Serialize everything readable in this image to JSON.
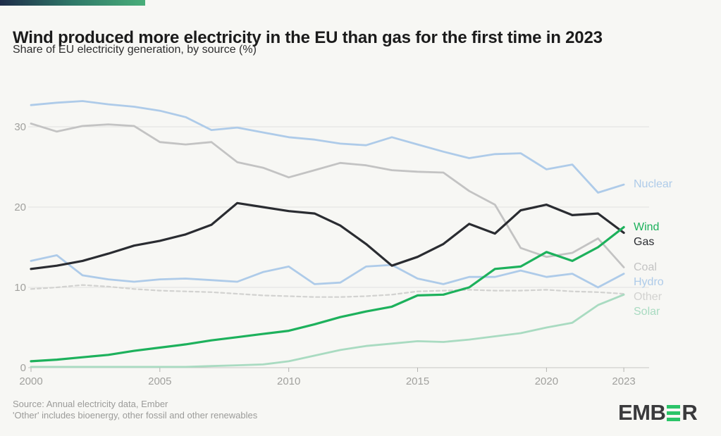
{
  "page": {
    "title": "Wind produced more electricity in the EU than gas for the first time in 2023",
    "subtitle": "Share of EU electricity generation, by source (%)",
    "source_line1": "Source: Annual electricity data, Ember",
    "source_line2": "'Other' includes bioenergy, other fossil and other renewables",
    "accent_gradient": [
      "#1e2c49",
      "#2f7868",
      "#49ae7a"
    ],
    "logo": {
      "left": "EMB",
      "right": "R",
      "bars_color": "#2bc468",
      "text_color": "#3a3a3c"
    }
  },
  "chart_data": {
    "type": "line",
    "title": "Wind produced more electricity in the EU than gas for the first time in 2023",
    "subtitle": "Share of EU electricity generation, by source (%)",
    "xlabel": "",
    "ylabel": "Share of EU electricity generation (%)",
    "grid": "horizontal",
    "legend_position": "right-of-line-ends",
    "ylim": [
      0,
      34.5
    ],
    "y_ticks": [
      0,
      10,
      20,
      30
    ],
    "x_ticks": [
      2000,
      2005,
      2010,
      2015,
      2020,
      2023
    ],
    "x": [
      2000,
      2001,
      2002,
      2003,
      2004,
      2005,
      2006,
      2007,
      2008,
      2009,
      2010,
      2011,
      2012,
      2013,
      2014,
      2015,
      2016,
      2017,
      2018,
      2019,
      2020,
      2021,
      2022,
      2023
    ],
    "series": [
      {
        "name": "Other",
        "color": "#d2d2d0",
        "width": 2.2,
        "dash": "5 4",
        "values": [
          9.8,
          10.0,
          10.3,
          10.1,
          9.8,
          9.6,
          9.5,
          9.4,
          9.2,
          9.0,
          8.9,
          8.8,
          8.8,
          8.9,
          9.1,
          9.5,
          9.6,
          9.7,
          9.6,
          9.6,
          9.7,
          9.5,
          9.4,
          9.2
        ]
      },
      {
        "name": "Solar",
        "color": "#a9dbc1",
        "width": 2.8,
        "dash": null,
        "values": [
          0.1,
          0.1,
          0.1,
          0.1,
          0.1,
          0.1,
          0.1,
          0.2,
          0.3,
          0.4,
          0.8,
          1.5,
          2.2,
          2.7,
          3.0,
          3.3,
          3.2,
          3.5,
          3.9,
          4.3,
          5.0,
          5.6,
          7.8,
          9.1
        ]
      },
      {
        "name": "Hydro",
        "color": "#aecbe9",
        "width": 2.8,
        "dash": null,
        "values": [
          13.3,
          14.0,
          11.5,
          11.0,
          10.7,
          11.0,
          11.1,
          10.9,
          10.7,
          11.9,
          12.6,
          10.4,
          10.6,
          12.6,
          12.8,
          11.1,
          10.4,
          11.3,
          11.3,
          12.1,
          11.3,
          11.7,
          10.0,
          11.7
        ]
      },
      {
        "name": "Coal",
        "color": "#c3c3c3",
        "width": 2.8,
        "dash": null,
        "values": [
          30.4,
          29.4,
          30.1,
          30.3,
          30.1,
          28.1,
          27.8,
          28.1,
          25.6,
          24.9,
          23.7,
          24.6,
          25.5,
          25.2,
          24.6,
          24.4,
          24.3,
          22.0,
          20.3,
          14.9,
          13.8,
          14.3,
          16.1,
          12.5
        ]
      },
      {
        "name": "Nuclear",
        "color": "#aecbe9",
        "width": 2.8,
        "dash": null,
        "values": [
          32.7,
          33.0,
          33.2,
          32.8,
          32.5,
          32.0,
          31.2,
          29.6,
          29.9,
          29.3,
          28.7,
          28.4,
          27.9,
          27.7,
          28.7,
          27.8,
          26.9,
          26.1,
          26.6,
          26.7,
          24.7,
          25.3,
          21.8,
          22.8
        ]
      },
      {
        "name": "Gas",
        "color": "#2a2c31",
        "width": 3.2,
        "dash": null,
        "values": [
          12.3,
          12.7,
          13.3,
          14.2,
          15.2,
          15.8,
          16.6,
          17.8,
          20.5,
          20.0,
          19.5,
          19.2,
          17.7,
          15.4,
          12.7,
          13.8,
          15.4,
          17.9,
          16.7,
          19.6,
          20.3,
          19.0,
          19.2,
          16.8
        ]
      },
      {
        "name": "Wind",
        "color": "#1db15c",
        "width": 3.2,
        "dash": null,
        "values": [
          0.8,
          1.0,
          1.3,
          1.6,
          2.1,
          2.5,
          2.9,
          3.4,
          3.8,
          4.2,
          4.6,
          5.4,
          6.3,
          7.0,
          7.6,
          9.0,
          9.1,
          10.0,
          12.3,
          12.6,
          14.4,
          13.3,
          15.0,
          17.5
        ]
      }
    ]
  }
}
